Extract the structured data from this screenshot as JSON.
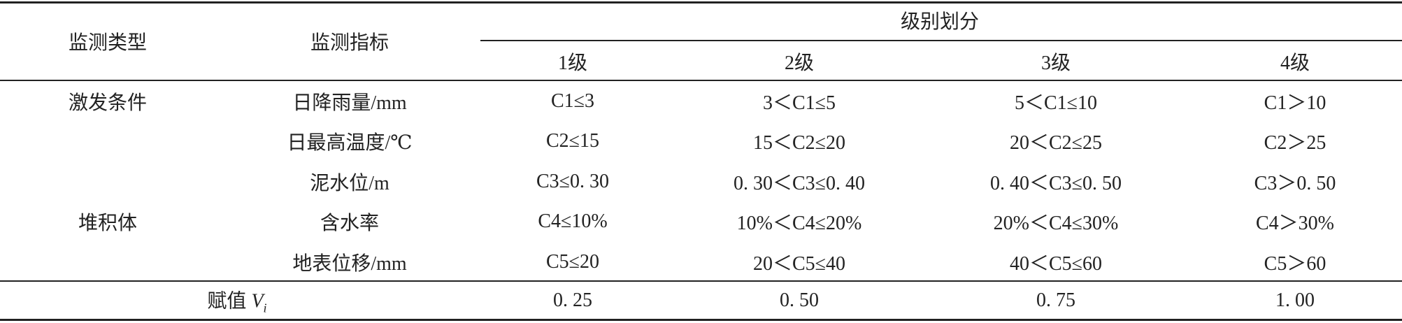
{
  "table": {
    "header": {
      "type": "监测类型",
      "indicator": "监测指标",
      "grade_group": "级别划分",
      "grades": [
        "1级",
        "2级",
        "3级",
        "4级"
      ]
    },
    "groups": [
      {
        "label": "激发条件",
        "row": 0
      },
      {
        "label": "堆积体",
        "row": 3
      }
    ],
    "rows": [
      {
        "indicator": "日降雨量/mm",
        "cells": [
          "C1≤3",
          "3＜C1≤5",
          "5＜C1≤10",
          "C1＞10"
        ]
      },
      {
        "indicator": "日最高温度/℃",
        "cells": [
          "C2≤15",
          "15＜C2≤20",
          "20＜C2≤25",
          "C2＞25"
        ]
      },
      {
        "indicator": "泥水位/m",
        "cells": [
          "C3≤0. 30",
          "0. 30＜C3≤0. 40",
          "0. 40＜C3≤0. 50",
          "C3＞0. 50"
        ]
      },
      {
        "indicator": "含水率",
        "cells": [
          "C4≤10%",
          "10%＜C4≤20%",
          "20%＜C4≤30%",
          "C4＞30%"
        ]
      },
      {
        "indicator": "地表位移/mm",
        "cells": [
          "C5≤20",
          "20＜C5≤40",
          "40＜C5≤60",
          "C5＞60"
        ]
      }
    ],
    "assignment": {
      "label": "赋值",
      "var": "V",
      "sub": "i",
      "values": [
        "0. 25",
        "0. 50",
        "0. 75",
        "1. 00"
      ]
    }
  }
}
